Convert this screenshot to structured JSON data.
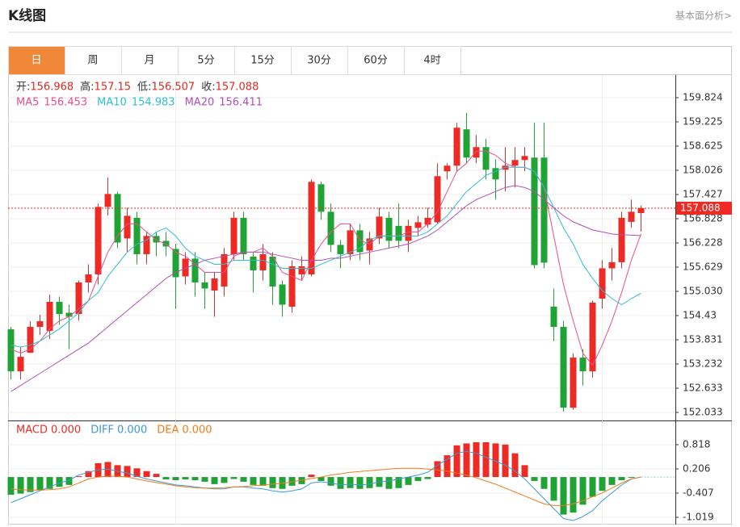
{
  "header": {
    "title": "K线图",
    "link": "基本面分析>"
  },
  "tabs": {
    "items": [
      "日",
      "周",
      "月",
      "5分",
      "15分",
      "30分",
      "60分",
      "4时"
    ],
    "active": 0
  },
  "chart_data": [
    {
      "type": "candlestick",
      "info": [
        {
          "label": "开:",
          "value": 156.968
        },
        {
          "label": "高:",
          "value": 157.15
        },
        {
          "label": "低:",
          "value": 156.507
        },
        {
          "label": "收:",
          "value": 157.088
        }
      ],
      "categories": [
        null,
        null,
        null,
        null,
        null,
        null,
        null,
        null,
        null,
        null,
        null,
        null,
        null,
        null,
        null,
        null,
        null,
        null,
        null,
        null,
        null,
        null,
        null,
        null,
        null,
        null,
        null,
        null,
        null,
        null,
        null,
        null,
        null,
        null,
        null,
        null,
        null,
        null,
        null,
        null,
        null,
        null,
        null,
        null,
        null,
        null,
        null,
        null,
        null,
        null,
        null,
        null,
        null,
        null,
        null,
        null,
        null,
        null,
        null,
        null,
        null,
        null,
        null,
        null,
        null,
        null
      ],
      "open": [
        154.09,
        153.05,
        153.51,
        154.15,
        154.05,
        154.77,
        154.5,
        154.47,
        155.25,
        155.45,
        157.12,
        157.44,
        156.34,
        156.85,
        155.95,
        156.4,
        156.28,
        156.08,
        155.4,
        155.84,
        155.25,
        155.05,
        155.15,
        155.95,
        156.85,
        155.89,
        155.55,
        155.89,
        155.2,
        154.65,
        155.45,
        155.45,
        157.68,
        157.0,
        156.18,
        155.95,
        156.54,
        156.04,
        156.34,
        156.85,
        156.65,
        156.28,
        156.6,
        156.68,
        156.74,
        158.0,
        158.14,
        159.04,
        158.34,
        158.6,
        158.08,
        158.04,
        158.14,
        158.28,
        158.34,
        158.34,
        154.65,
        154.15,
        152.15,
        153.39,
        153.05,
        154.85,
        155.6,
        155.75,
        156.75,
        156.968
      ],
      "high": [
        154.15,
        153.65,
        154.29,
        154.45,
        154.95,
        154.9,
        154.7,
        155.3,
        155.7,
        157.2,
        157.85,
        157.5,
        157.1,
        157.0,
        156.5,
        156.5,
        156.5,
        156.2,
        156.0,
        156.0,
        155.5,
        155.5,
        156.1,
        157.0,
        157.0,
        156.0,
        156.2,
        156.0,
        155.3,
        155.8,
        155.9,
        157.8,
        157.75,
        157.2,
        156.3,
        156.7,
        156.7,
        156.5,
        157.1,
        157.0,
        157.2,
        156.8,
        156.9,
        157.1,
        158.2,
        158.2,
        159.2,
        159.45,
        158.9,
        158.8,
        158.3,
        158.6,
        158.6,
        158.6,
        159.2,
        159.2,
        155.1,
        154.3,
        153.5,
        153.6,
        154.8,
        155.8,
        156.1,
        157.0,
        157.3,
        157.15
      ],
      "low": [
        152.85,
        152.85,
        153.51,
        153.95,
        153.85,
        154.2,
        153.6,
        154.3,
        155.0,
        155.2,
        156.9,
        156.1,
        156.0,
        155.7,
        155.7,
        155.9,
        155.9,
        154.6,
        155.2,
        154.9,
        154.6,
        154.4,
        154.9,
        155.8,
        155.8,
        155.0,
        155.3,
        154.7,
        154.4,
        154.5,
        155.3,
        155.4,
        156.8,
        156.0,
        155.6,
        155.8,
        155.8,
        155.7,
        156.2,
        156.1,
        156.1,
        156.0,
        156.4,
        156.6,
        156.7,
        157.8,
        158.0,
        158.2,
        158.2,
        157.8,
        157.3,
        157.5,
        157.6,
        158.0,
        155.6,
        155.6,
        153.8,
        152.05,
        152.1,
        152.7,
        152.9,
        154.6,
        155.3,
        155.6,
        156.6,
        156.507
      ],
      "close": [
        153.05,
        153.41,
        154.15,
        154.29,
        154.77,
        154.47,
        154.4,
        155.25,
        155.45,
        157.12,
        157.44,
        156.24,
        156.9,
        155.95,
        156.4,
        156.24,
        156.14,
        155.38,
        155.84,
        155.25,
        155.1,
        155.35,
        155.95,
        156.85,
        155.95,
        155.55,
        155.95,
        155.15,
        154.7,
        155.65,
        155.65,
        157.74,
        157.0,
        156.18,
        155.95,
        156.54,
        156.0,
        156.34,
        156.88,
        156.28,
        156.28,
        156.65,
        156.74,
        156.85,
        157.88,
        158.14,
        159.08,
        158.34,
        158.6,
        158.04,
        157.8,
        158.14,
        158.28,
        158.38,
        155.68,
        155.74,
        154.15,
        152.15,
        153.39,
        153.05,
        154.75,
        155.6,
        155.75,
        156.85,
        157.0,
        157.088
      ],
      "up_color": "#ee2a24",
      "down_color": "#1fa335",
      "series": [
        {
          "name": "MA5",
          "color": "#e6508c",
          "last": 156.453,
          "values": [
            153.6,
            153.5,
            153.6,
            153.8,
            154.1,
            154.3,
            154.4,
            154.6,
            154.8,
            155.4,
            156.0,
            156.4,
            156.7,
            156.7,
            156.5,
            156.3,
            156.2,
            156.0,
            155.9,
            155.7,
            155.5,
            155.5,
            155.5,
            155.9,
            156.0,
            156.0,
            156.1,
            155.9,
            155.5,
            155.4,
            155.3,
            155.8,
            156.2,
            156.5,
            156.7,
            156.7,
            156.3,
            156.2,
            156.4,
            156.4,
            156.4,
            156.5,
            156.5,
            156.7,
            157.0,
            157.5,
            158.0,
            158.2,
            158.5,
            158.5,
            158.4,
            158.2,
            158.1,
            158.1,
            158.0,
            157.6,
            156.4,
            155.2,
            154.3,
            153.5,
            153.2,
            153.7,
            154.3,
            155.0,
            155.8,
            156.453
          ]
        },
        {
          "name": "MA10",
          "color": "#2fbfd3",
          "last": 154.983,
          "values": [
            153.7,
            153.65,
            153.7,
            153.8,
            153.95,
            154.1,
            154.3,
            154.5,
            154.8,
            155.0,
            155.4,
            155.7,
            156.0,
            156.2,
            156.3,
            156.5,
            156.6,
            156.4,
            156.1,
            155.9,
            155.8,
            155.7,
            155.7,
            155.8,
            155.8,
            155.8,
            155.8,
            155.7,
            155.6,
            155.6,
            155.6,
            155.6,
            155.7,
            155.8,
            155.9,
            156.0,
            156.1,
            156.3,
            156.4,
            156.4,
            156.4,
            156.4,
            156.4,
            156.5,
            156.7,
            156.9,
            157.2,
            157.5,
            157.7,
            157.9,
            158.0,
            158.1,
            158.1,
            158.1,
            158.0,
            157.6,
            157.1,
            156.6,
            156.2,
            155.7,
            155.35,
            155.05,
            154.85,
            154.7,
            154.85,
            154.983
          ]
        },
        {
          "name": "MA20",
          "color": "#b24fb8",
          "last": 156.411,
          "values": [
            152.55,
            152.7,
            152.85,
            153.0,
            153.15,
            153.3,
            153.45,
            153.6,
            153.75,
            153.95,
            154.15,
            154.35,
            154.55,
            154.75,
            154.95,
            155.15,
            155.35,
            155.5,
            155.6,
            155.7,
            155.8,
            155.85,
            155.9,
            155.95,
            156.0,
            156.0,
            156.0,
            155.95,
            155.9,
            155.85,
            155.8,
            155.8,
            155.8,
            155.85,
            155.85,
            155.9,
            155.95,
            156.0,
            156.05,
            156.1,
            156.15,
            156.2,
            156.3,
            156.4,
            156.55,
            156.75,
            156.95,
            157.15,
            157.3,
            157.4,
            157.5,
            157.6,
            157.65,
            157.6,
            157.5,
            157.3,
            157.1,
            156.9,
            156.75,
            156.65,
            156.55,
            156.5,
            156.45,
            156.43,
            156.42,
            156.411
          ]
        }
      ],
      "last_price": 157.088,
      "last_color": "#ee2a24",
      "ylim": [
        151.854,
        160.383
      ],
      "yticks": [
        159.824,
        159.225,
        158.625,
        158.026,
        157.427,
        156.828,
        156.228,
        155.629,
        {
          "value": 155.03,
          "label": "155.030"
        },
        154.43,
        153.831,
        153.232,
        152.633,
        152.033
      ],
      "grid": true
    },
    {
      "type": "macd",
      "categories": [
        null,
        null,
        null,
        null,
        null,
        null,
        null,
        null,
        null,
        null,
        null,
        null,
        null,
        null,
        null,
        null,
        null,
        null,
        null,
        null,
        null,
        null,
        null,
        null,
        null,
        null,
        null,
        null,
        null,
        null,
        null,
        null,
        null,
        null,
        null,
        null,
        null,
        null,
        null,
        null,
        null,
        null,
        null,
        null,
        null,
        null,
        null,
        null,
        null,
        null,
        null,
        null,
        null,
        null,
        null,
        null,
        null,
        null,
        null,
        null,
        null,
        null,
        null,
        null,
        null,
        null
      ],
      "series": [
        {
          "name": "MACD",
          "color": "#ee2a24",
          "kind": "bar",
          "up_color": "#ee2a24",
          "down_color": "#1fa335",
          "value_label": "0.000",
          "values": [
            -0.45,
            -0.42,
            -0.38,
            -0.34,
            -0.3,
            -0.25,
            -0.2,
            0.02,
            0.15,
            0.35,
            0.38,
            0.3,
            0.28,
            0.22,
            0.15,
            0.08,
            -0.06,
            -0.08,
            -0.06,
            -0.08,
            -0.12,
            -0.18,
            -0.15,
            -0.05,
            -0.12,
            -0.2,
            -0.22,
            -0.28,
            -0.3,
            -0.22,
            -0.18,
            0.06,
            -0.1,
            -0.22,
            -0.3,
            -0.28,
            -0.3,
            -0.28,
            -0.25,
            -0.3,
            -0.28,
            -0.2,
            -0.1,
            -0.05,
            0.4,
            0.55,
            0.8,
            0.85,
            0.88,
            0.88,
            0.85,
            0.82,
            0.6,
            0.3,
            -0.1,
            -0.3,
            -0.6,
            -0.95,
            -0.9,
            -0.7,
            -0.5,
            -0.35,
            -0.2,
            -0.08,
            -0.02,
            0
          ]
        },
        {
          "name": "DIFF",
          "color": "#3a9ad9",
          "kind": "line",
          "value_label": "0.000",
          "values": [
            -0.65,
            -0.55,
            -0.45,
            -0.35,
            -0.25,
            -0.15,
            -0.08,
            0.05,
            0.12,
            0.18,
            0.2,
            0.15,
            0.1,
            0.02,
            -0.05,
            -0.1,
            -0.15,
            -0.2,
            -0.22,
            -0.25,
            -0.28,
            -0.3,
            -0.3,
            -0.25,
            -0.25,
            -0.28,
            -0.3,
            -0.35,
            -0.38,
            -0.35,
            -0.3,
            -0.15,
            -0.12,
            -0.15,
            -0.2,
            -0.18,
            -0.2,
            -0.18,
            -0.12,
            -0.1,
            -0.05,
            0,
            0.05,
            0.12,
            0.3,
            0.45,
            0.6,
            0.65,
            0.6,
            0.5,
            0.4,
            0.3,
            0.15,
            -0.05,
            -0.3,
            -0.55,
            -0.8,
            -1.05,
            -1.1,
            -1.0,
            -0.85,
            -0.6,
            -0.4,
            -0.2,
            -0.05,
            0
          ]
        },
        {
          "name": "DEA",
          "color": "#f07c1a",
          "kind": "line",
          "value_label": "0.000",
          "values": [
            -0.3,
            -0.32,
            -0.33,
            -0.33,
            -0.32,
            -0.3,
            -0.25,
            -0.15,
            -0.05,
            0,
            0.02,
            0.02,
            0,
            -0.05,
            -0.1,
            -0.14,
            -0.18,
            -0.22,
            -0.25,
            -0.27,
            -0.28,
            -0.28,
            -0.27,
            -0.25,
            -0.24,
            -0.22,
            -0.2,
            -0.18,
            -0.16,
            -0.12,
            -0.08,
            -0.04,
            0,
            0.05,
            0.08,
            0.12,
            0.14,
            0.16,
            0.18,
            0.2,
            0.22,
            0.22,
            0.22,
            0.2,
            0.18,
            0.15,
            0.1,
            0.05,
            -0.02,
            -0.1,
            -0.18,
            -0.28,
            -0.38,
            -0.48,
            -0.58,
            -0.68,
            -0.72,
            -0.72,
            -0.68,
            -0.6,
            -0.5,
            -0.4,
            -0.28,
            -0.15,
            -0.05,
            0
          ]
        }
      ],
      "ylim": [
        -1.203,
        1.41
      ],
      "yticks": [
        0.818,
        0.206,
        -0.407,
        -1.019
      ],
      "grid": true
    }
  ]
}
